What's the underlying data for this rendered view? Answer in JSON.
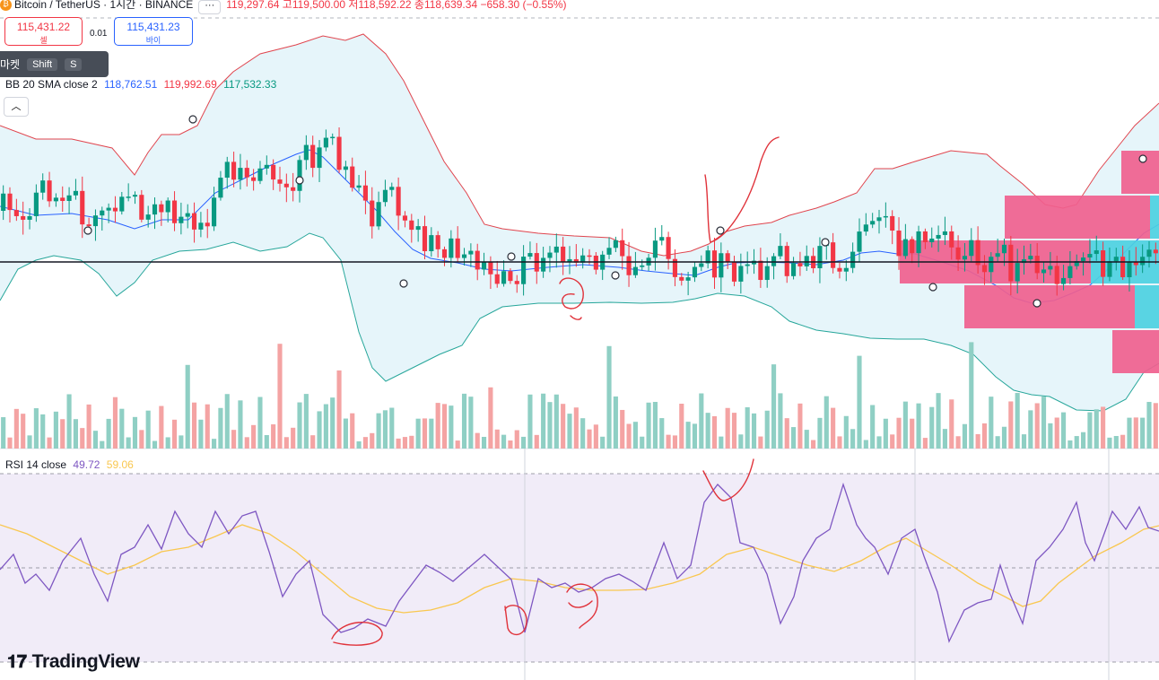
{
  "header": {
    "symbol": "Bitcoin / TetherUS · 1시간 · BINANCE",
    "more": "···",
    "open_label": "119,297.64",
    "high": "고119,500.00",
    "low": "저118,592.22",
    "close": "종118,639.34",
    "change": "−658.30 (−0.55%)"
  },
  "trade": {
    "sell_price": "115,431.22",
    "sell_label": "셀",
    "spread": "0.01",
    "buy_price": "115,431.23",
    "buy_label": "바이"
  },
  "tooltip": {
    "label": "마켓",
    "key1": "Shift",
    "key2": "S"
  },
  "bb_legend": {
    "name": "BB 20 SMA close 2",
    "basis": "118,762.51",
    "upper": "119,992.69",
    "lower": "117,532.33"
  },
  "rsi_legend": {
    "name": "RSI 14 close",
    "rsi": "49.72",
    "ma": "59.06"
  },
  "brand": {
    "name": "TradingView"
  },
  "colors": {
    "up": "#089981",
    "down": "#f23645",
    "up_vol": "#8fcfc4",
    "down_vol": "#f4a3a3",
    "bb_upper": "#e0454e",
    "bb_basis": "#2962ff",
    "bb_lower": "#26a69a",
    "bb_fill": "#e3f4fa",
    "rsi_line": "#7e57c2",
    "rsi_ma": "#f9c74f",
    "rsi_bg": "#f1ecf8",
    "drawing": "#e0323a",
    "vp_pink": "#f0608e",
    "vp_cyan": "#4dd0e1"
  },
  "chart_data": {
    "type": "candlestick",
    "series_up": [
      1,
      0,
      0,
      0,
      1,
      1,
      1,
      0,
      1,
      0,
      1,
      1,
      0,
      0,
      1,
      1,
      1,
      0,
      1,
      1,
      1,
      0,
      1,
      1,
      0,
      1,
      0,
      1,
      1,
      0,
      1,
      0,
      1,
      1,
      1,
      0,
      1,
      0,
      0,
      1,
      1,
      0,
      0,
      0,
      0,
      1,
      1,
      0,
      1,
      1,
      1,
      0,
      1,
      0,
      1,
      0,
      0,
      1,
      1,
      1,
      0,
      0,
      0,
      1,
      0,
      1,
      0,
      0,
      1,
      0,
      1,
      1,
      0,
      1,
      0,
      0,
      1,
      0,
      0,
      1,
      1,
      0,
      1,
      1,
      1,
      0,
      1,
      0,
      1,
      0,
      0,
      1,
      1,
      1,
      0,
      0,
      1,
      1,
      1,
      1,
      1,
      0,
      0,
      0,
      1,
      1,
      1,
      1,
      0,
      1,
      0,
      0,
      1,
      1,
      1,
      0,
      1,
      1,
      1,
      0,
      1,
      0,
      1,
      0,
      1,
      1,
      0,
      0,
      1,
      1,
      1,
      1,
      1,
      1,
      1,
      0,
      0,
      1,
      0,
      1,
      0,
      1,
      1,
      1,
      0,
      0,
      1,
      1,
      0,
      0,
      1,
      1,
      1,
      0,
      1,
      1,
      1,
      0,
      1,
      1,
      0,
      1,
      1,
      1,
      1,
      1,
      1,
      0,
      1,
      1,
      0,
      1,
      0,
      1,
      1,
      0
    ],
    "bb_legend_values": {
      "basis": 118762.51,
      "upper": 119992.69,
      "lower": 117532.33
    },
    "rsi_levels": [
      70,
      50,
      30
    ]
  }
}
